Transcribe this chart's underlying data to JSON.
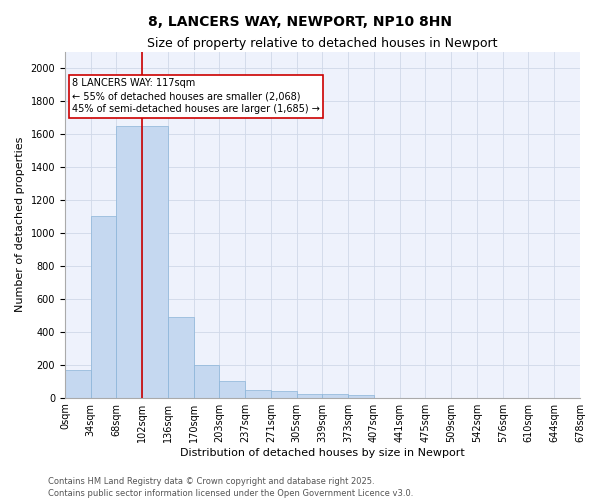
{
  "title1": "8, LANCERS WAY, NEWPORT, NP10 8HN",
  "title2": "Size of property relative to detached houses in Newport",
  "xlabel": "Distribution of detached houses by size in Newport",
  "ylabel": "Number of detached properties",
  "bar_values": [
    170,
    1100,
    1650,
    1650,
    490,
    200,
    100,
    45,
    40,
    25,
    20,
    15,
    0,
    0,
    0,
    0,
    0,
    0,
    0,
    0
  ],
  "bin_labels": [
    "0sqm",
    "34sqm",
    "68sqm",
    "102sqm",
    "136sqm",
    "170sqm",
    "203sqm",
    "237sqm",
    "271sqm",
    "305sqm",
    "339sqm",
    "373sqm",
    "407sqm",
    "441sqm",
    "475sqm",
    "509sqm",
    "542sqm",
    "576sqm",
    "610sqm",
    "644sqm",
    "678sqm"
  ],
  "bar_color": "#c5d8f0",
  "bar_edge_color": "#8ab4d8",
  "bg_color": "#eef2fc",
  "grid_color": "#d0d8e8",
  "red_line_x": 3,
  "annotation_text": "8 LANCERS WAY: 117sqm\n← 55% of detached houses are smaller (2,068)\n45% of semi-detached houses are larger (1,685) →",
  "annotation_box_color": "#ffffff",
  "annotation_box_edge": "#cc0000",
  "ylim": [
    0,
    2100
  ],
  "yticks": [
    0,
    200,
    400,
    600,
    800,
    1000,
    1200,
    1400,
    1600,
    1800,
    2000
  ],
  "footer1": "Contains HM Land Registry data © Crown copyright and database right 2025.",
  "footer2": "Contains public sector information licensed under the Open Government Licence v3.0.",
  "title1_fontsize": 10,
  "title2_fontsize": 9,
  "axis_label_fontsize": 8,
  "tick_fontsize": 7,
  "annotation_fontsize": 7,
  "footer_fontsize": 6
}
